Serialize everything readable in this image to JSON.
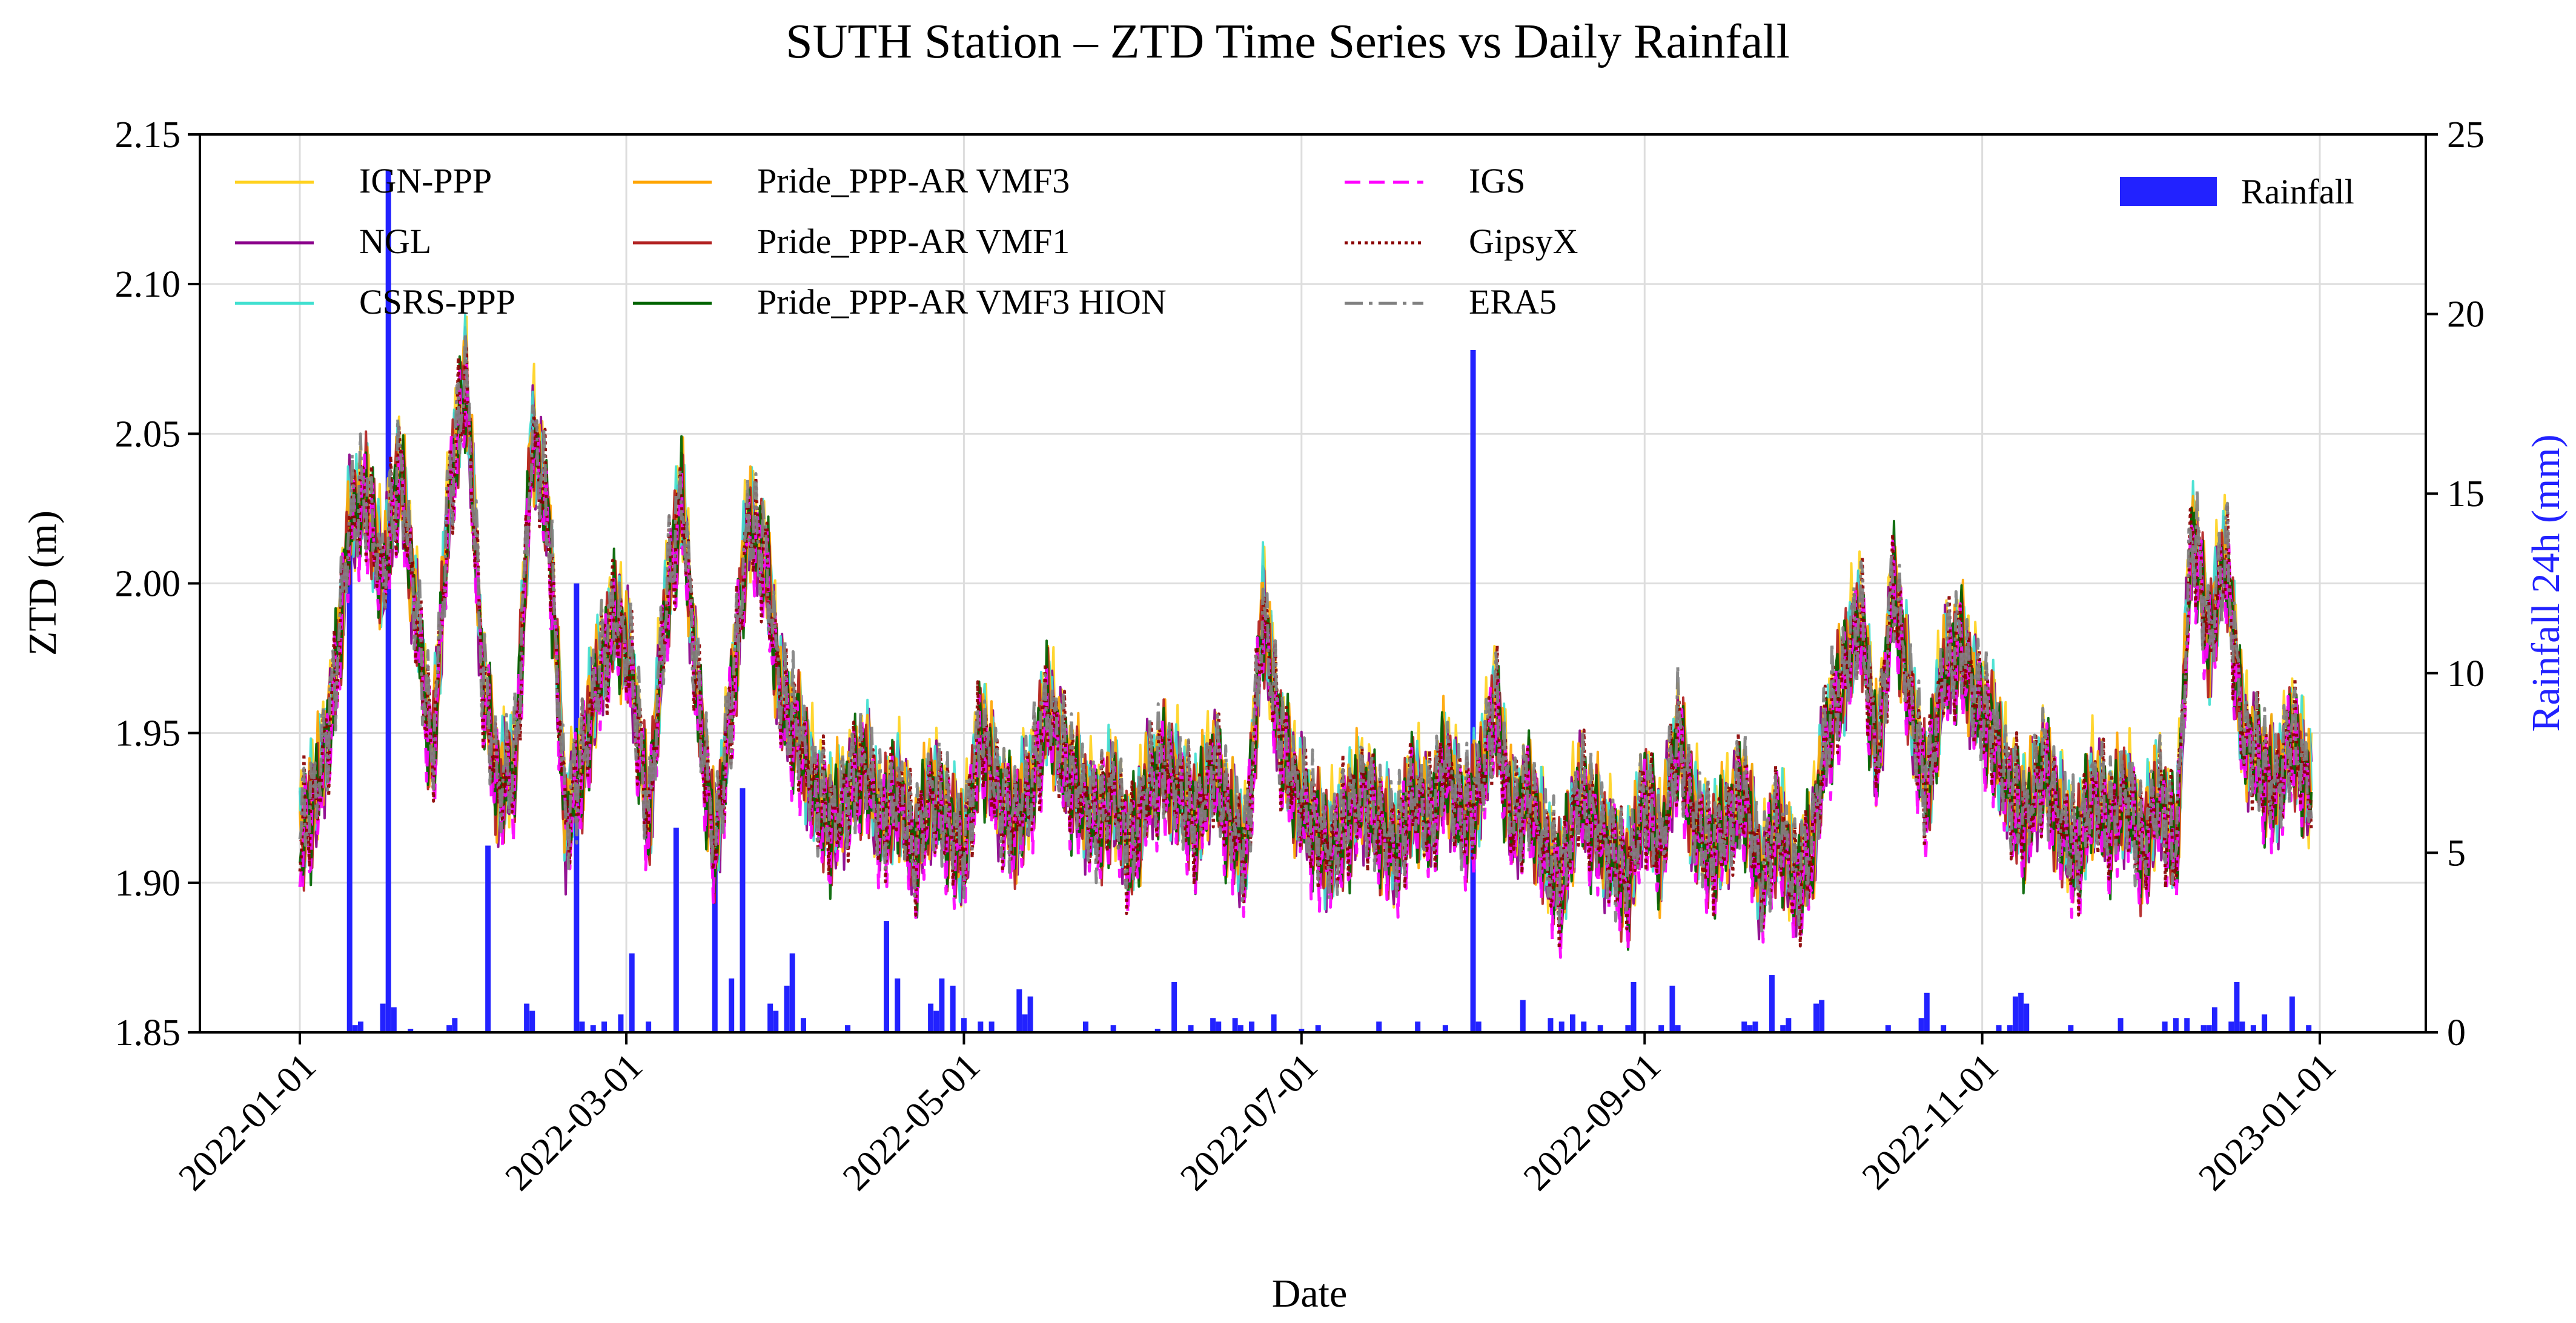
{
  "chart_data": {
    "type": "line",
    "title": "SUTH Station – ZTD Time Series vs Daily Rainfall",
    "xlabel": "Date",
    "ylabel": "ZTD (m)",
    "y2label": "Rainfall 24h (mm)",
    "x_range": [
      "2022-01-01",
      "2023-01-01"
    ],
    "ylim": [
      1.85,
      2.15
    ],
    "y2lim": [
      0,
      25
    ],
    "grid": true,
    "legend_position": "top",
    "x_ticks": [
      "2022-01-01",
      "2022-03-01",
      "2022-05-01",
      "2022-07-01",
      "2022-09-01",
      "2022-11-01",
      "2023-01-01"
    ],
    "y_ticks": [
      1.85,
      1.9,
      1.95,
      2.0,
      2.05,
      2.1,
      2.15
    ],
    "y_tick_labels": [
      "1.85",
      "1.90",
      "1.95",
      "2.00",
      "2.05",
      "2.10",
      "2.15"
    ],
    "y2_ticks": [
      0,
      5,
      10,
      15,
      20,
      25
    ],
    "y2_tick_labels": [
      "0",
      "5",
      "10",
      "15",
      "20",
      "25"
    ],
    "ztd_series": [
      {
        "name": "IGN-PPP",
        "color": "#FFD21F",
        "style": "solid",
        "offset": 0.004
      },
      {
        "name": "NGL",
        "color": "#8B008B",
        "style": "solid",
        "offset": 0.0
      },
      {
        "name": "CSRS-PPP",
        "color": "#40E0D0",
        "style": "solid",
        "offset": 0.002
      },
      {
        "name": "Pride_PPP-AR VMF3",
        "color": "#FFA500",
        "style": "solid",
        "offset": 0.001
      },
      {
        "name": "Pride_PPP-AR VMF1",
        "color": "#B22222",
        "style": "solid",
        "offset": -0.001
      },
      {
        "name": "Pride_PPP-AR VMF3 HION",
        "color": "#006400",
        "style": "solid",
        "offset": -0.0015
      },
      {
        "name": "IGS",
        "color": "#FF00FF",
        "style": "dashed",
        "offset": -0.004
      },
      {
        "name": "GipsyX",
        "color": "#8B0000",
        "style": "dotted",
        "offset": 0.0
      },
      {
        "name": "ERA5",
        "color": "#808080",
        "style": "dashdot",
        "offset": 0.002
      }
    ],
    "ztd_daily_mean": {
      "dates": [
        "2022-01-01",
        "2022-01-04",
        "2022-01-07",
        "2022-01-10",
        "2022-01-13",
        "2022-01-16",
        "2022-01-19",
        "2022-01-22",
        "2022-01-25",
        "2022-01-28",
        "2022-01-31",
        "2022-02-03",
        "2022-02-06",
        "2022-02-09",
        "2022-02-12",
        "2022-02-15",
        "2022-02-18",
        "2022-02-21",
        "2022-02-24",
        "2022-02-27",
        "2022-03-02",
        "2022-03-05",
        "2022-03-08",
        "2022-03-11",
        "2022-03-14",
        "2022-03-17",
        "2022-03-20",
        "2022-03-23",
        "2022-03-26",
        "2022-03-29",
        "2022-04-01",
        "2022-04-04",
        "2022-04-07",
        "2022-04-10",
        "2022-04-13",
        "2022-04-16",
        "2022-04-19",
        "2022-04-22",
        "2022-04-25",
        "2022-04-28",
        "2022-05-01",
        "2022-05-04",
        "2022-05-07",
        "2022-05-10",
        "2022-05-13",
        "2022-05-16",
        "2022-05-19",
        "2022-05-22",
        "2022-05-25",
        "2022-05-28",
        "2022-05-31",
        "2022-06-03",
        "2022-06-06",
        "2022-06-09",
        "2022-06-12",
        "2022-06-15",
        "2022-06-18",
        "2022-06-21",
        "2022-06-24",
        "2022-06-27",
        "2022-06-30",
        "2022-07-03",
        "2022-07-06",
        "2022-07-09",
        "2022-07-12",
        "2022-07-15",
        "2022-07-18",
        "2022-07-21",
        "2022-07-24",
        "2022-07-27",
        "2022-07-30",
        "2022-08-02",
        "2022-08-05",
        "2022-08-08",
        "2022-08-11",
        "2022-08-14",
        "2022-08-17",
        "2022-08-20",
        "2022-08-23",
        "2022-08-26",
        "2022-08-29",
        "2022-09-01",
        "2022-09-04",
        "2022-09-07",
        "2022-09-10",
        "2022-09-13",
        "2022-09-16",
        "2022-09-19",
        "2022-09-22",
        "2022-09-25",
        "2022-09-28",
        "2022-10-01",
        "2022-10-04",
        "2022-10-07",
        "2022-10-10",
        "2022-10-13",
        "2022-10-16",
        "2022-10-19",
        "2022-10-22",
        "2022-10-25",
        "2022-10-28",
        "2022-10-31",
        "2022-11-03",
        "2022-11-06",
        "2022-11-09",
        "2022-11-12",
        "2022-11-15",
        "2022-11-18",
        "2022-11-21",
        "2022-11-24",
        "2022-11-27",
        "2022-11-30",
        "2022-12-03",
        "2022-12-06",
        "2022-12-09",
        "2022-12-12",
        "2022-12-15",
        "2022-12-18",
        "2022-12-21",
        "2022-12-24",
        "2022-12-27",
        "2022-12-30"
      ],
      "values": [
        1.915,
        1.93,
        1.96,
        2.02,
        2.03,
        2.0,
        2.04,
        1.99,
        1.94,
        2.03,
        2.07,
        1.97,
        1.93,
        1.94,
        2.05,
        2.02,
        1.92,
        1.94,
        1.97,
        1.99,
        1.97,
        1.92,
        1.99,
        2.03,
        1.96,
        1.91,
        1.96,
        2.02,
        2.01,
        1.96,
        1.95,
        1.93,
        1.92,
        1.93,
        1.94,
        1.92,
        1.93,
        1.91,
        1.93,
        1.92,
        1.91,
        1.95,
        1.93,
        1.92,
        1.93,
        1.96,
        1.94,
        1.93,
        1.92,
        1.93,
        1.91,
        1.93,
        1.94,
        1.93,
        1.92,
        1.94,
        1.92,
        1.91,
        1.99,
        1.95,
        1.93,
        1.92,
        1.91,
        1.92,
        1.93,
        1.92,
        1.91,
        1.93,
        1.92,
        1.94,
        1.92,
        1.93,
        1.96,
        1.92,
        1.93,
        1.91,
        1.9,
        1.93,
        1.92,
        1.91,
        1.9,
        1.93,
        1.91,
        1.95,
        1.92,
        1.91,
        1.92,
        1.93,
        1.9,
        1.92,
        1.9,
        1.91,
        1.95,
        1.97,
        1.99,
        1.94,
        2.0,
        1.96,
        1.93,
        1.97,
        1.98,
        1.96,
        1.95,
        1.93,
        1.92,
        1.94,
        1.92,
        1.91,
        1.93,
        1.92,
        1.93,
        1.91,
        1.93,
        1.91,
        2.02,
        1.98,
        2.01,
        1.95,
        1.94,
        1.93,
        1.95,
        1.93
      ]
    },
    "rainfall_series": {
      "name": "Rainfall",
      "color": "#2222FF",
      "days": [
        9,
        10,
        11,
        15,
        16,
        17,
        20,
        27,
        28,
        34,
        41,
        42,
        50,
        51,
        53,
        55,
        58,
        60,
        63,
        68,
        75,
        78,
        80,
        85,
        86,
        88,
        89,
        91,
        99,
        106,
        108,
        114,
        115,
        116,
        118,
        120,
        123,
        125,
        130,
        131,
        132,
        142,
        147,
        155,
        158,
        161,
        165,
        166,
        169,
        170,
        172,
        176,
        181,
        184,
        195,
        202,
        207,
        212,
        213,
        221,
        226,
        228,
        230,
        232,
        235,
        240,
        241,
        246,
        248,
        249,
        261,
        262,
        263,
        266,
        268,
        269,
        274,
        275,
        287,
        293,
        294,
        297,
        307,
        309,
        310,
        311,
        312,
        320,
        329,
        337,
        339,
        341,
        344,
        345,
        346,
        349,
        350,
        351,
        353,
        355,
        360,
        363
      ],
      "values": [
        14,
        0.2,
        0.3,
        0.8,
        24,
        0.7,
        0.1,
        0.2,
        0.4,
        5.2,
        0.8,
        0.6,
        12.5,
        0.3,
        0.2,
        0.3,
        0.5,
        2.2,
        0.3,
        5.7,
        5.5,
        1.5,
        6.8,
        0.8,
        0.6,
        1.3,
        2.2,
        0.4,
        0.2,
        3.1,
        1.5,
        0.8,
        0.6,
        1.5,
        1.3,
        0.4,
        0.3,
        0.3,
        1.2,
        0.5,
        1.0,
        0.3,
        0.2,
        0.1,
        1.4,
        0.2,
        0.4,
        0.3,
        0.4,
        0.2,
        0.3,
        0.5,
        0.1,
        0.2,
        0.3,
        0.3,
        0.2,
        19,
        0.3,
        0.9,
        0.4,
        0.3,
        0.5,
        0.3,
        0.2,
        0.2,
        1.4,
        0.2,
        1.3,
        0.2,
        0.3,
        0.2,
        0.3,
        1.6,
        0.2,
        0.4,
        0.8,
        0.9,
        0.2,
        0.4,
        1.1,
        0.2,
        0.2,
        0.2,
        1.0,
        1.1,
        0.8,
        0.2,
        0.4,
        0.3,
        0.4,
        0.4,
        0.2,
        0.2,
        0.7,
        0.3,
        1.4,
        0.3,
        0.2,
        0.5,
        1.0,
        0.2
      ]
    }
  },
  "legend_extra": {
    "rainfall_label": "Rainfall"
  }
}
